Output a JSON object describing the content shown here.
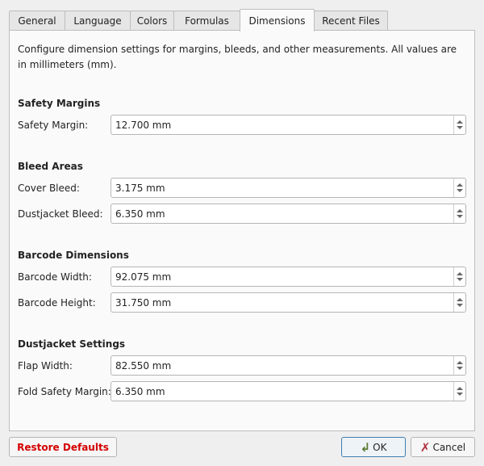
{
  "tabs": [
    {
      "label": "General"
    },
    {
      "label": "Language"
    },
    {
      "label": "Colors"
    },
    {
      "label": "Formulas"
    },
    {
      "label": "Dimensions",
      "active": true
    },
    {
      "label": "Recent Files"
    }
  ],
  "description": "Configure dimension settings for margins, bleeds, and other measurements. All values are in millimeters (mm).",
  "sections": [
    {
      "title": "Safety Margins",
      "fields": [
        {
          "label": "Safety Margin:",
          "value": "12.700 mm"
        }
      ]
    },
    {
      "title": "Bleed Areas",
      "fields": [
        {
          "label": "Cover Bleed:",
          "value": "3.175 mm"
        },
        {
          "label": "Dustjacket Bleed:",
          "value": "6.350 mm"
        }
      ]
    },
    {
      "title": "Barcode Dimensions",
      "fields": [
        {
          "label": "Barcode Width:",
          "value": "92.075 mm"
        },
        {
          "label": "Barcode Height:",
          "value": "31.750 mm"
        }
      ]
    },
    {
      "title": "Dustjacket Settings",
      "fields": [
        {
          "label": "Flap Width:",
          "value": "82.550 mm"
        },
        {
          "label": "Fold Safety Margin:",
          "value": "6.350 mm"
        }
      ]
    }
  ],
  "buttons": {
    "restore": "Restore Defaults",
    "ok": "OK",
    "cancel": "Cancel"
  },
  "colors": {
    "restore_text": "#d40000",
    "ok_icon": "#5a7a32",
    "cancel_icon": "#b03040",
    "ok_border": "#3d7fb0"
  }
}
